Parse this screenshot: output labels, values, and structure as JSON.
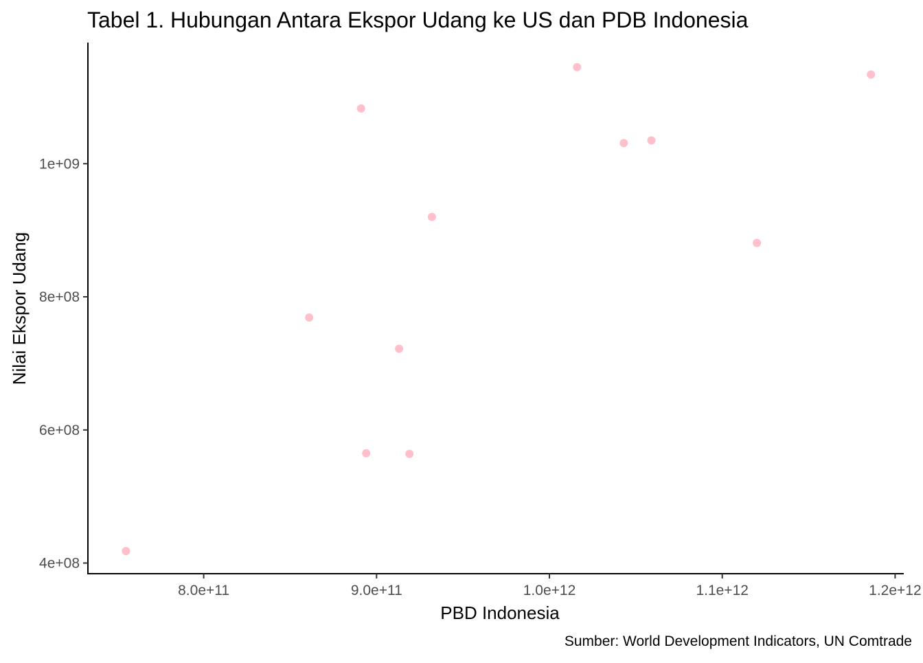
{
  "chart_data": {
    "type": "scatter",
    "title": "Tabel 1. Hubungan Antara Ekspor Udang ke US dan PDB Indonesia",
    "xlabel": "PBD Indonesia",
    "ylabel": "Nilai Ekspor Udang",
    "caption": "Sumber: World Development Indicators, UN Comtrade",
    "xlim": [
      733000000000,
      1205000000000
    ],
    "ylim": [
      384000000,
      1182000000
    ],
    "x_ticks": [
      {
        "value": 800000000000,
        "label": "8.0e+11"
      },
      {
        "value": 900000000000,
        "label": "9.0e+11"
      },
      {
        "value": 1000000000000,
        "label": "1.0e+12"
      },
      {
        "value": 1100000000000,
        "label": "1.1e+12"
      },
      {
        "value": 1200000000000,
        "label": "1.2e+12"
      }
    ],
    "y_ticks": [
      {
        "value": 400000000,
        "label": "4e+08"
      },
      {
        "value": 600000000,
        "label": "6e+08"
      },
      {
        "value": 800000000,
        "label": "8e+08"
      },
      {
        "value": 1000000000,
        "label": "1e+09"
      }
    ],
    "point_color": "#FFC0CB",
    "grid": false,
    "legend": "none",
    "points": [
      {
        "x": 755000000000,
        "y": 418000000
      },
      {
        "x": 861000000000,
        "y": 769000000
      },
      {
        "x": 891000000000,
        "y": 1083000000
      },
      {
        "x": 894000000000,
        "y": 565000000
      },
      {
        "x": 913000000000,
        "y": 722000000
      },
      {
        "x": 919000000000,
        "y": 564000000
      },
      {
        "x": 932000000000,
        "y": 920000000
      },
      {
        "x": 1016000000000,
        "y": 1145000000
      },
      {
        "x": 1043000000000,
        "y": 1031000000
      },
      {
        "x": 1059000000000,
        "y": 1035000000
      },
      {
        "x": 1120000000000,
        "y": 881000000
      },
      {
        "x": 1186000000000,
        "y": 1134000000
      }
    ]
  }
}
